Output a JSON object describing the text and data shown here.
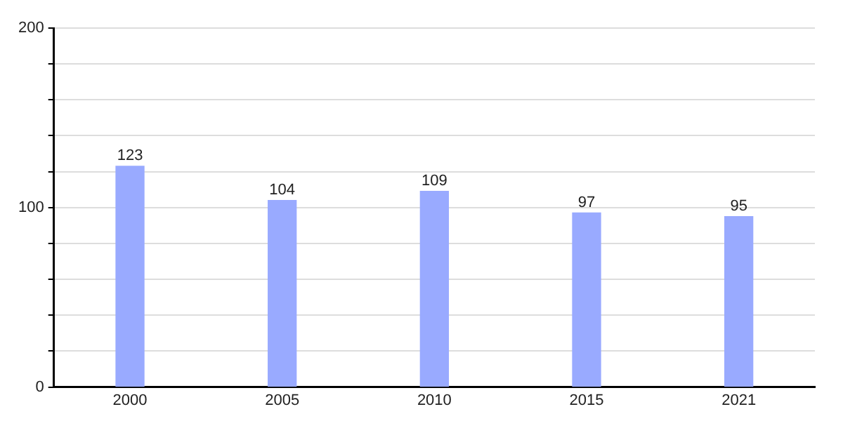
{
  "chart_data": {
    "type": "bar",
    "categories": [
      "2000",
      "2005",
      "2010",
      "2015",
      "2021"
    ],
    "values": [
      123,
      104,
      109,
      97,
      95
    ],
    "color": "#99aaff",
    "ylim": [
      0,
      200
    ],
    "yticks": [
      0,
      {
        "value": 20,
        "label": null
      },
      {
        "value": 40,
        "label": null
      },
      {
        "value": 60,
        "label": null
      },
      {
        "value": 80,
        "label": null
      },
      100,
      {
        "value": 120,
        "label": null
      },
      {
        "value": 140,
        "label": null
      },
      {
        "value": 160,
        "label": null
      },
      {
        "value": 180,
        "label": null
      },
      200
    ],
    "grid": true,
    "data_labels": true
  }
}
